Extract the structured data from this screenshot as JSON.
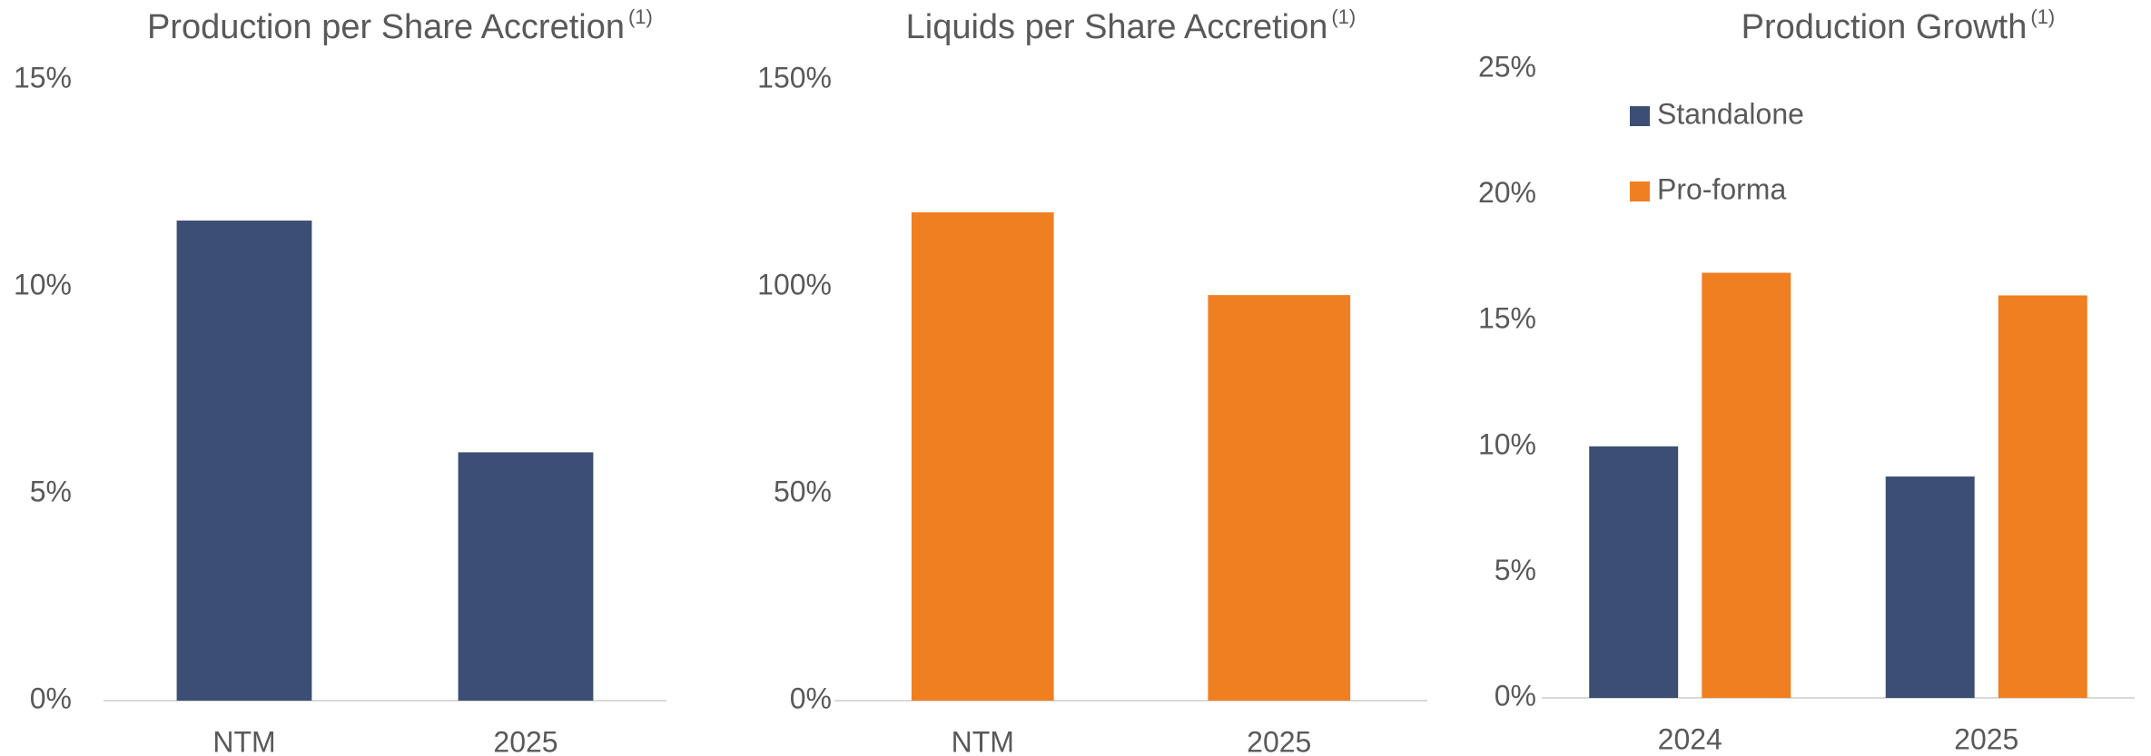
{
  "chart_data": [
    {
      "type": "bar",
      "title": "Production per Share Accretion",
      "title_superscript": "(1)",
      "categories": [
        "NTM",
        "2025"
      ],
      "values": [
        11.6,
        6.0
      ],
      "color": "#3c4e74",
      "ylim": [
        0,
        15
      ],
      "yticks": [
        {
          "value": 0,
          "label": "0%"
        },
        {
          "value": 5,
          "label": "5%"
        },
        {
          "value": 10,
          "label": "10%"
        },
        {
          "value": 15,
          "label": "15%"
        }
      ],
      "grid": false
    },
    {
      "type": "bar",
      "title": "Liquids per Share Accretion",
      "title_superscript": "(1)",
      "categories": [
        "NTM",
        "2025"
      ],
      "values": [
        118,
        98
      ],
      "color": "#f07f22",
      "ylim": [
        0,
        150
      ],
      "yticks": [
        {
          "value": 0,
          "label": "0%"
        },
        {
          "value": 50,
          "label": "50%"
        },
        {
          "value": 100,
          "label": "100%"
        },
        {
          "value": 150,
          "label": "150%"
        }
      ],
      "grid": false
    },
    {
      "type": "grouped_bar",
      "title": "Production Growth",
      "title_superscript": "(1)",
      "categories": [
        "2024",
        "2025"
      ],
      "series": [
        {
          "name": "Standalone",
          "color": "#3c4e74",
          "values": [
            10.0,
            8.8
          ]
        },
        {
          "name": "Pro-forma",
          "color": "#f07f22",
          "values": [
            16.9,
            16.0
          ]
        }
      ],
      "ylim": [
        0,
        25
      ],
      "yticks": [
        {
          "value": 0,
          "label": "0%"
        },
        {
          "value": 5,
          "label": "5%"
        },
        {
          "value": 10,
          "label": "10%"
        },
        {
          "value": 15,
          "label": "15%"
        },
        {
          "value": 20,
          "label": "20%"
        },
        {
          "value": 25,
          "label": "25%"
        }
      ],
      "grid": false,
      "legend": "top-left"
    }
  ]
}
